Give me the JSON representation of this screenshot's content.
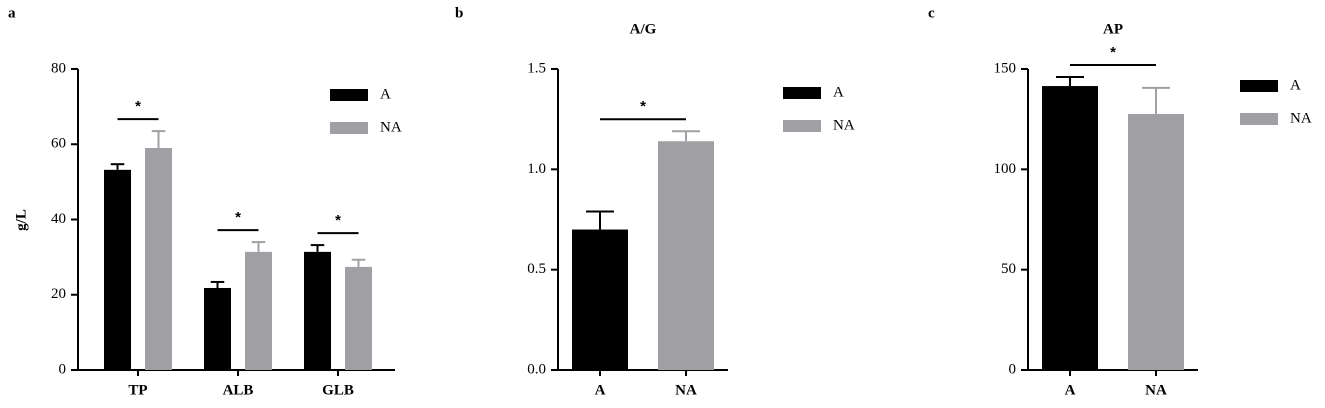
{
  "chart_data": [
    {
      "type": "bar",
      "panel": "a",
      "ylabel": "g/L",
      "categories": [
        "TP",
        "ALB",
        "GLB"
      ],
      "series": [
        {
          "name": "A",
          "color": "#000000",
          "values": [
            53.2,
            21.8,
            31.4
          ],
          "errors": [
            1.5,
            1.6,
            1.8
          ]
        },
        {
          "name": "NA",
          "color": "#a0a0a4",
          "values": [
            59.0,
            31.4,
            27.4
          ],
          "errors": [
            4.5,
            2.6,
            1.9
          ]
        }
      ],
      "significance": [
        "*",
        "*",
        "*"
      ],
      "ylim": [
        0,
        80
      ],
      "yticks": [
        0,
        20,
        40,
        60,
        80
      ]
    },
    {
      "type": "bar",
      "panel": "b",
      "title": "A/G",
      "categories": [
        "A",
        "NA"
      ],
      "series": [
        {
          "name": "A",
          "color": "#000000",
          "values": [
            0.7,
            null
          ],
          "errors": [
            0.09,
            null
          ]
        },
        {
          "name": "NA",
          "color": "#a0a0a4",
          "values": [
            null,
            1.14
          ],
          "errors": [
            null,
            0.05
          ]
        }
      ],
      "significance": [
        "*"
      ],
      "ylim": [
        0,
        1.5
      ],
      "yticks": [
        {
          "value": 0,
          "label": "0.0"
        },
        0.5,
        {
          "value": 1,
          "label": "1.0"
        },
        1.5
      ]
    },
    {
      "type": "bar",
      "panel": "c",
      "title": "AP",
      "categories": [
        "A",
        "NA"
      ],
      "series": [
        {
          "name": "A",
          "color": "#000000",
          "values": [
            141.5,
            null
          ],
          "errors": [
            4.5,
            null
          ]
        },
        {
          "name": "NA",
          "color": "#a0a0a4",
          "values": [
            null,
            127.6
          ],
          "errors": [
            null,
            13
          ]
        }
      ],
      "significance": [
        "*"
      ],
      "ylim": [
        0,
        150
      ],
      "yticks": [
        0,
        50,
        100,
        150
      ]
    }
  ]
}
